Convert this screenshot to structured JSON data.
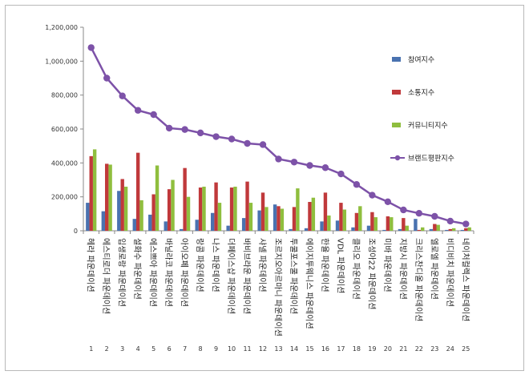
{
  "chart_data": {
    "type": "bar",
    "categories": [
      "헤라 파운데이션",
      "에스티로더 파운데이션",
      "입생로랑 파운데이션",
      "설화수 파운데이션",
      "에스쁘아 파운데이션",
      "바닐라코 파운데이션",
      "아이오페 파운데이션",
      "랑콤 파운데이션",
      "나스 파운데이션",
      "더페이스샵 파운데이션",
      "바비브라운 파운데이션",
      "샤넬 파운데이션",
      "조르지오아르마니 파운데이션",
      "투쿨포스쿨 파운데이션",
      "에이지투웨니스 파운데이션",
      "한율 파운데이션",
      "VDL 파운데이션",
      "클리오 파운데이션",
      "조성아22 파운데이션",
      "미바 파운데이션",
      "지방시 파운데이션",
      "크리스찬디올 파운데이션",
      "엘로엘 파운데이션",
      "비디비치 파운데이션",
      "네이처컬렉스 파운데이션"
    ],
    "ranks": [
      "1",
      "2",
      "3",
      "4",
      "5",
      "6",
      "7",
      "8",
      "9",
      "10",
      "11",
      "12",
      "13",
      "14",
      "15",
      "16",
      "17",
      "18",
      "19",
      "20",
      "21",
      "22",
      "23",
      "24",
      "25"
    ],
    "series": [
      {
        "name": "참여지수",
        "kind": "bar",
        "color": "#4a72b0",
        "values": [
          165000,
          115000,
          235000,
          70000,
          95000,
          55000,
          10000,
          65000,
          105000,
          30000,
          75000,
          120000,
          155000,
          10000,
          15000,
          55000,
          60000,
          20000,
          30000,
          5000,
          10000,
          70000,
          10000,
          5000,
          5000
        ]
      },
      {
        "name": "소통지수",
        "kind": "bar",
        "color": "#c0393b",
        "values": [
          440000,
          395000,
          305000,
          460000,
          215000,
          245000,
          370000,
          255000,
          285000,
          255000,
          290000,
          225000,
          145000,
          140000,
          170000,
          225000,
          165000,
          105000,
          110000,
          85000,
          75000,
          5000,
          40000,
          10000,
          15000
        ]
      },
      {
        "name": "커뮤니티지수",
        "kind": "bar",
        "color": "#8fbe3e",
        "values": [
          480000,
          390000,
          260000,
          180000,
          385000,
          300000,
          200000,
          260000,
          165000,
          260000,
          165000,
          140000,
          130000,
          250000,
          195000,
          90000,
          125000,
          145000,
          80000,
          80000,
          30000,
          20000,
          35000,
          15000,
          20000
        ]
      },
      {
        "name": "브랜드평판지수",
        "kind": "line",
        "color": "#7d52a8",
        "values": [
          1080000,
          900000,
          795000,
          710000,
          685000,
          605000,
          597000,
          577000,
          555000,
          541000,
          515000,
          508000,
          423000,
          405000,
          385000,
          372000,
          335000,
          273000,
          210000,
          171000,
          123000,
          103000,
          85000,
          57000,
          40000
        ]
      }
    ],
    "yticks": [
      "0",
      "200,000",
      "400,000",
      "600,000",
      "800,000",
      "1,000,000",
      "1,200,000"
    ],
    "ylim": [
      0,
      1200000
    ],
    "legend_position": "right",
    "grid": false
  }
}
